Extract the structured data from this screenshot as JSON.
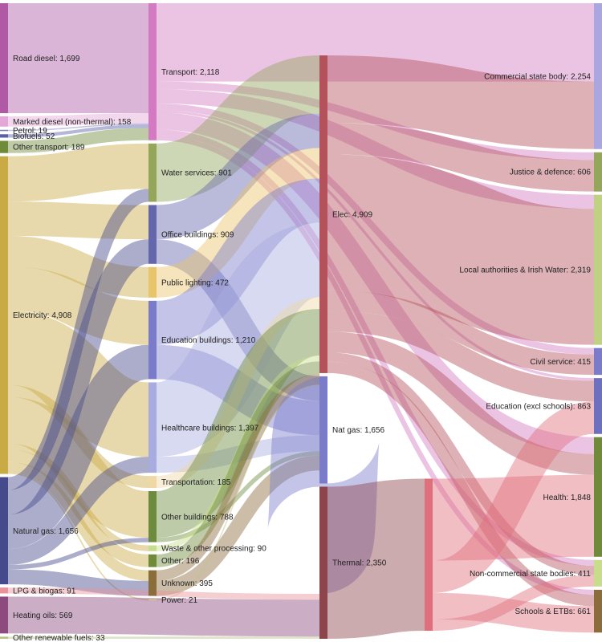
{
  "chart_data": {
    "type": "sankey",
    "units": "",
    "columns": [
      [
        {
          "id": "road_diesel",
          "label": "Road diesel",
          "value": 1699,
          "color": "#b05aa6"
        },
        {
          "id": "marked_diesel",
          "label": "Marked diesel (non-thermal)",
          "value": 158,
          "color": "#e3a7d8"
        },
        {
          "id": "petrol",
          "label": "Petrol",
          "value": 19,
          "color": "#7b7bb8"
        },
        {
          "id": "biofuels",
          "label": "Biofuels",
          "value": 52,
          "color": "#5b5fa8"
        },
        {
          "id": "other_transport",
          "label": "Other transport",
          "value": 189,
          "color": "#6f8b3a"
        },
        {
          "id": "electricity",
          "label": "Electricity",
          "value": 4908,
          "color": "#c9ab45"
        },
        {
          "id": "natural_gas",
          "label": "Natural gas",
          "value": 1656,
          "color": "#454a8c"
        },
        {
          "id": "lpg_biogas",
          "label": "LPG & biogas",
          "value": 91,
          "color": "#e8929c"
        },
        {
          "id": "heating_oils",
          "label": "Heating oils",
          "value": 569,
          "color": "#8c4a7e"
        },
        {
          "id": "other_renewable",
          "label": "Other renewable fuels",
          "value": 33,
          "color": "#b8c285"
        }
      ],
      [
        {
          "id": "transport",
          "label": "Transport",
          "value": 2118,
          "color": "#d37ac2"
        },
        {
          "id": "water_services",
          "label": "Water services",
          "value": 901,
          "color": "#93a65a"
        },
        {
          "id": "office_buildings",
          "label": "Office buildings",
          "value": 909,
          "color": "#6567ad"
        },
        {
          "id": "public_lighting",
          "label": "Public lighting",
          "value": 472,
          "color": "#e8c46a"
        },
        {
          "id": "education_buildings",
          "label": "Education buildings",
          "value": 1210,
          "color": "#7a7cc9"
        },
        {
          "id": "healthcare_buildings",
          "label": "Healthcare buildings",
          "value": 1397,
          "color": "#a9acdf"
        },
        {
          "id": "transportation",
          "label": "Transportation",
          "value": 185,
          "color": "#f0d8a4"
        },
        {
          "id": "other_buildings",
          "label": "Other buildings",
          "value": 788,
          "color": "#6d8b3d"
        },
        {
          "id": "waste_processing",
          "label": "Waste & other processing",
          "value": 90,
          "color": "#c8dd8c"
        },
        {
          "id": "other",
          "label": "Other",
          "value": 196,
          "color": "#6f8b3a"
        },
        {
          "id": "unknown",
          "label": "Unknown",
          "value": 395,
          "color": "#8b6d3b"
        },
        {
          "id": "power",
          "label": "Power",
          "value": 21,
          "color": "#c6c08a"
        }
      ],
      [
        {
          "id": "elec",
          "label": "Elec",
          "value": 4909,
          "color": "#b3525a"
        },
        {
          "id": "nat_gas",
          "label": "Nat gas",
          "value": 1656,
          "color": "#7a7cc9"
        },
        {
          "id": "thermal",
          "label": "Thermal",
          "value": 2350,
          "color": "#8d454c"
        }
      ],
      [
        {
          "id": "thermal_out",
          "label": "",
          "value": 2350,
          "color": "#e06f7c"
        }
      ],
      [
        {
          "id": "commercial_state",
          "label": "Commercial state body",
          "value": 2254,
          "color": "#a9a6e0"
        },
        {
          "id": "justice_defence",
          "label": "Justice & defence",
          "value": 606,
          "color": "#93a65a"
        },
        {
          "id": "local_authorities",
          "label": "Local authorities & Irish Water",
          "value": 2319,
          "color": "#bfd282"
        },
        {
          "id": "civil_service",
          "label": "Civil service",
          "value": 415,
          "color": "#7a7cc9"
        },
        {
          "id": "education_excl",
          "label": "Education (excl schools)",
          "value": 863,
          "color": "#6d6fbf"
        },
        {
          "id": "health",
          "label": "Health",
          "value": 1848,
          "color": "#6f8b3a"
        },
        {
          "id": "noncommercial_state",
          "label": "Non-commercial state bodies",
          "value": 411,
          "color": "#c8dd8c"
        },
        {
          "id": "schools_etbs",
          "label": "Schools & ETBs",
          "value": 661,
          "color": "#8b6d3b"
        }
      ]
    ],
    "links": [
      {
        "s": "road_diesel",
        "t": "transport",
        "v": 1699
      },
      {
        "s": "marked_diesel",
        "t": "transport",
        "v": 158
      },
      {
        "s": "petrol",
        "t": "transport",
        "v": 19
      },
      {
        "s": "biofuels",
        "t": "transport",
        "v": 52
      },
      {
        "s": "other_transport",
        "t": "transport",
        "v": 189
      },
      {
        "s": "electricity",
        "t": "water_services",
        "v": 700
      },
      {
        "s": "electricity",
        "t": "office_buildings",
        "v": 530
      },
      {
        "s": "electricity",
        "t": "public_lighting",
        "v": 472
      },
      {
        "s": "electricity",
        "t": "education_buildings",
        "v": 680
      },
      {
        "s": "electricity",
        "t": "healthcare_buildings",
        "v": 1150
      },
      {
        "s": "electricity",
        "t": "transportation",
        "v": 185
      },
      {
        "s": "electricity",
        "t": "other_buildings",
        "v": 720
      },
      {
        "s": "electricity",
        "t": "waste_processing",
        "v": 90
      },
      {
        "s": "electricity",
        "t": "other",
        "v": 196
      },
      {
        "s": "electricity",
        "t": "unknown",
        "v": 164
      },
      {
        "s": "electricity",
        "t": "power",
        "v": 21
      },
      {
        "s": "natural_gas",
        "t": "water_services",
        "v": 201
      },
      {
        "s": "natural_gas",
        "t": "office_buildings",
        "v": 379
      },
      {
        "s": "natural_gas",
        "t": "education_buildings",
        "v": 530
      },
      {
        "s": "natural_gas",
        "t": "healthcare_buildings",
        "v": 247
      },
      {
        "s": "natural_gas",
        "t": "other_buildings",
        "v": 68
      },
      {
        "s": "natural_gas",
        "t": "unknown",
        "v": 231
      },
      {
        "s": "transport",
        "t": "commercial_state",
        "v": 1210
      },
      {
        "s": "transport",
        "t": "justice_defence",
        "v": 120
      },
      {
        "s": "transport",
        "t": "local_authorities",
        "v": 220
      },
      {
        "s": "transport",
        "t": "civil_service",
        "v": 100
      },
      {
        "s": "transport",
        "t": "education_excl",
        "v": 40
      },
      {
        "s": "transport",
        "t": "health",
        "v": 260
      },
      {
        "s": "transport",
        "t": "noncommercial_state",
        "v": 90
      },
      {
        "s": "transport",
        "t": "schools_etbs",
        "v": 78
      },
      {
        "s": "water_services",
        "t": "elec",
        "v": 901
      },
      {
        "s": "office_buildings",
        "t": "elec",
        "v": 530
      },
      {
        "s": "office_buildings",
        "t": "nat_gas",
        "v": 379
      },
      {
        "s": "public_lighting",
        "t": "elec",
        "v": 472
      },
      {
        "s": "education_buildings",
        "t": "elec",
        "v": 680
      },
      {
        "s": "education_buildings",
        "t": "nat_gas",
        "v": 530
      },
      {
        "s": "healthcare_buildings",
        "t": "elec",
        "v": 1150
      },
      {
        "s": "healthcare_buildings",
        "t": "nat_gas",
        "v": 247
      },
      {
        "s": "transportation",
        "t": "elec",
        "v": 185
      },
      {
        "s": "other_buildings",
        "t": "elec",
        "v": 720
      },
      {
        "s": "other_buildings",
        "t": "nat_gas",
        "v": 68
      },
      {
        "s": "waste_processing",
        "t": "elec",
        "v": 90
      },
      {
        "s": "other",
        "t": "elec",
        "v": 196
      },
      {
        "s": "unknown",
        "t": "elec",
        "v": 164
      },
      {
        "s": "unknown",
        "t": "nat_gas",
        "v": 231
      },
      {
        "s": "power",
        "t": "elec",
        "v": 21
      },
      {
        "s": "elec",
        "t": "commercial_state",
        "v": 1044
      },
      {
        "s": "elec",
        "t": "justice_defence",
        "v": 486
      },
      {
        "s": "elec",
        "t": "local_authorities",
        "v": 2099
      },
      {
        "s": "elec",
        "t": "civil_service",
        "v": 315
      },
      {
        "s": "elec",
        "t": "education_excl",
        "v": 323
      },
      {
        "s": "elec",
        "t": "health",
        "v": 322
      },
      {
        "s": "elec",
        "t": "noncommercial_state",
        "v": 144
      },
      {
        "s": "elec",
        "t": "schools_etbs",
        "v": 176
      },
      {
        "s": "nat_gas",
        "t": "thermal",
        "v": 1656
      },
      {
        "s": "lpg_biogas",
        "t": "thermal",
        "v": 91
      },
      {
        "s": "heating_oils",
        "t": "thermal",
        "v": 569
      },
      {
        "s": "other_renewable",
        "t": "thermal",
        "v": 33
      },
      {
        "s": "thermal",
        "t": "thermal_out",
        "v": 2350
      },
      {
        "s": "thermal_out",
        "t": "health",
        "v": 1266
      },
      {
        "s": "thermal_out",
        "t": "education_excl",
        "v": 500
      },
      {
        "s": "thermal_out",
        "t": "schools_etbs",
        "v": 407
      },
      {
        "s": "thermal_out",
        "t": "noncommercial_state",
        "v": 177
      }
    ]
  }
}
